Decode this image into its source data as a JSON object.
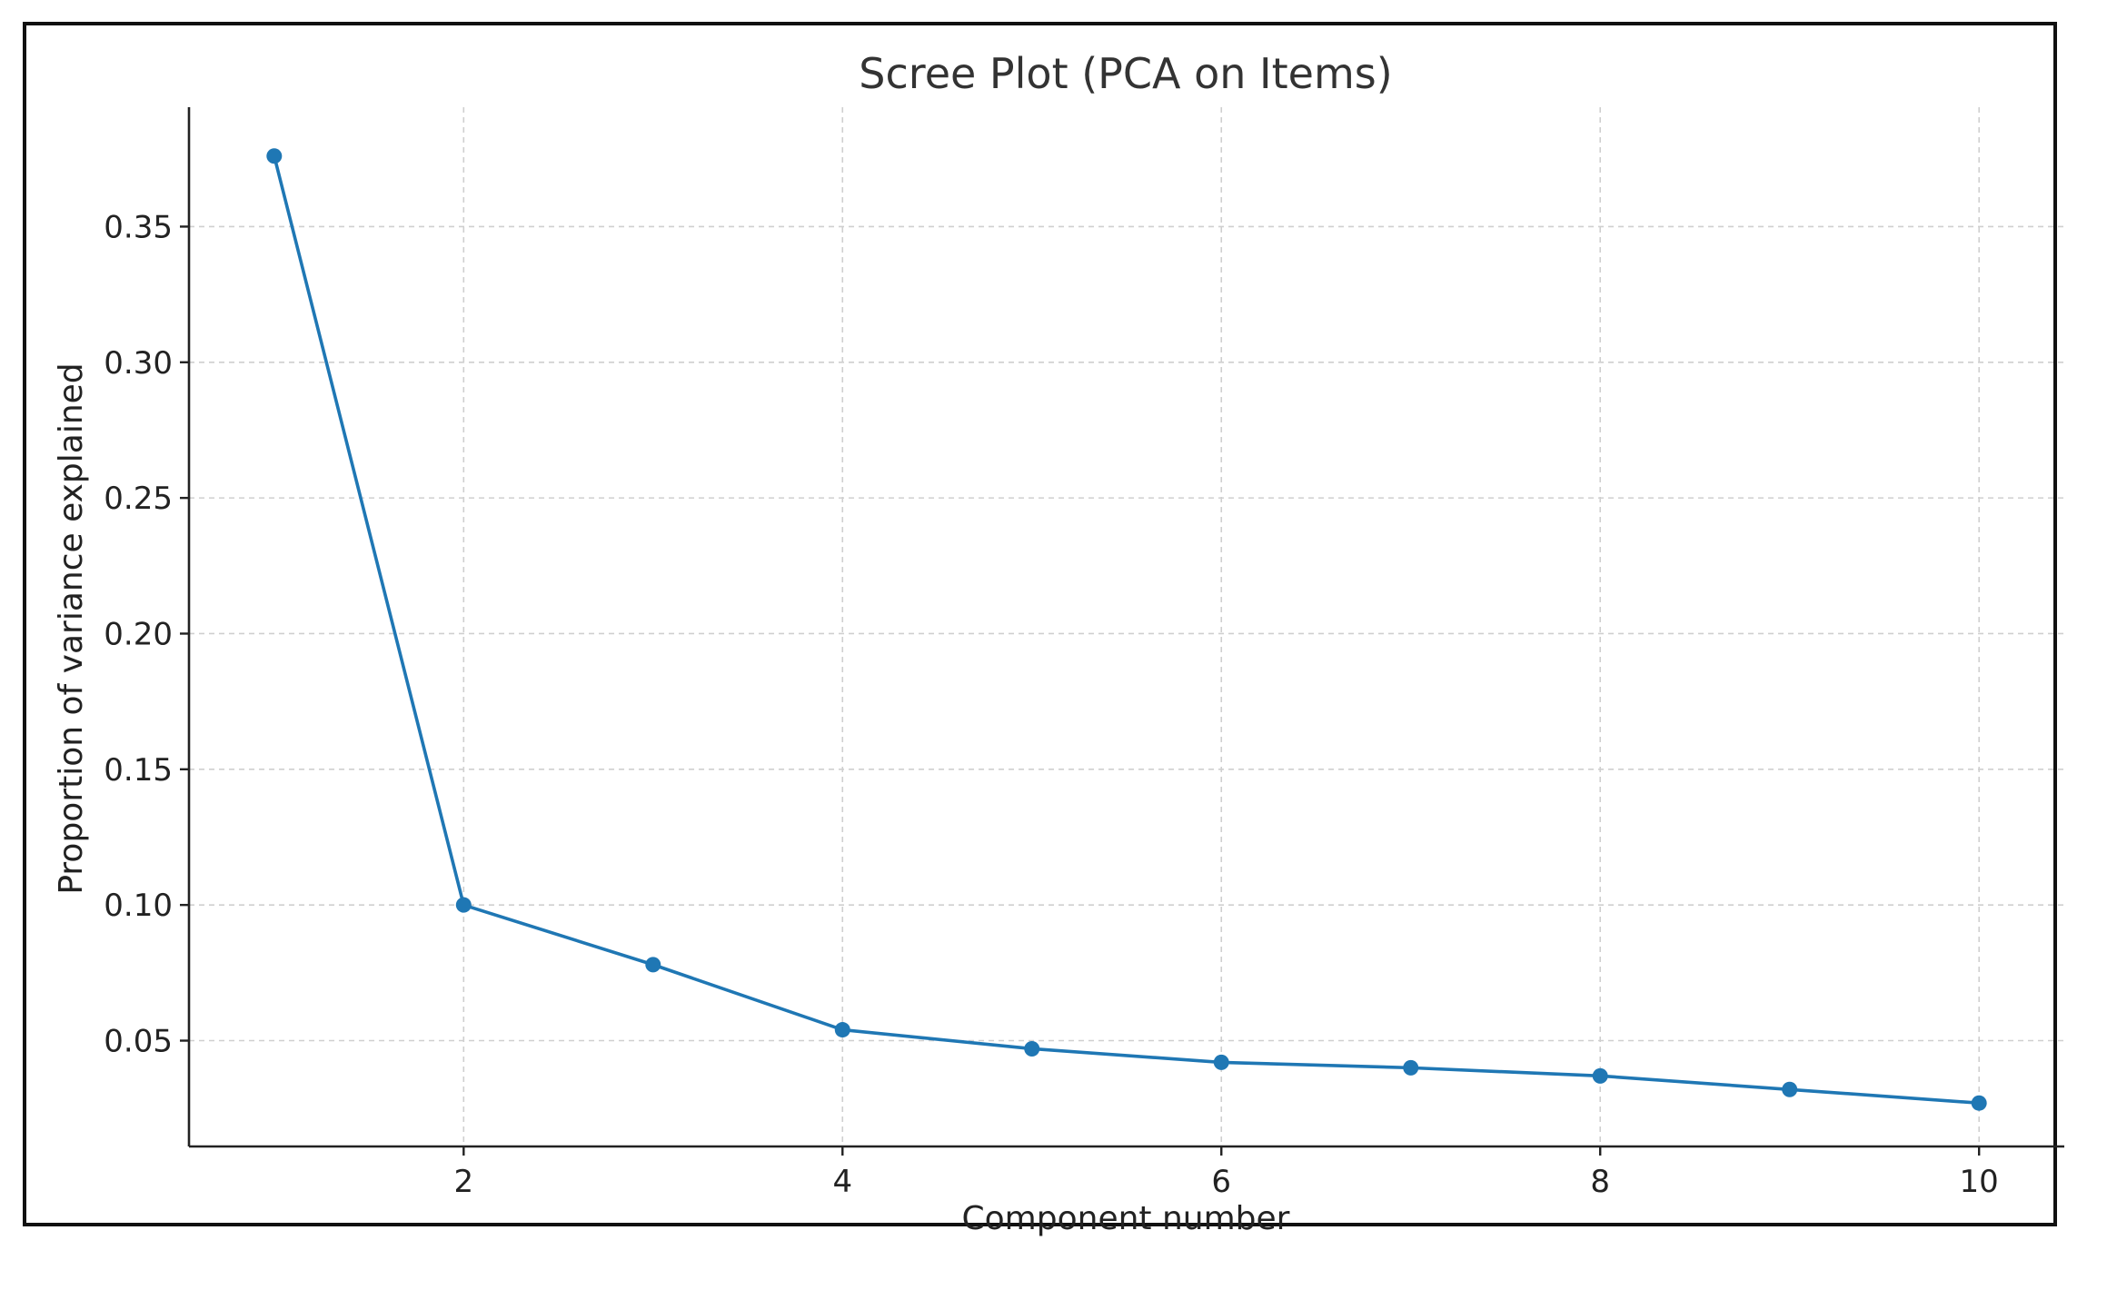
{
  "chart_data": {
    "type": "line",
    "title": "Scree Plot (PCA on Items)",
    "xlabel": "Component number",
    "ylabel": "Proportion of variance explained",
    "x": [
      1,
      2,
      3,
      4,
      5,
      6,
      7,
      8,
      9,
      10
    ],
    "series": [
      {
        "values": [
          0.376,
          0.1,
          0.078,
          0.054,
          0.047,
          0.042,
          0.04,
          0.037,
          0.032,
          0.027
        ]
      }
    ],
    "xlim": [
      0.55,
      10.45
    ],
    "ylim": [
      0.011,
      0.394
    ],
    "xticks": [
      2,
      4,
      6,
      8,
      10
    ],
    "xtick_labels": [
      "2",
      "4",
      "6",
      "8",
      "10"
    ],
    "yticks": [
      0.05,
      0.1,
      0.15,
      0.2,
      0.25,
      0.3,
      0.35
    ],
    "ytick_labels": [
      "0.05",
      "0.10",
      "0.15",
      "0.20",
      "0.25",
      "0.30",
      "0.35"
    ],
    "grid": true,
    "marker": "circle",
    "colors": {
      "series": "#1f77b4",
      "grid": "#cfcfcf",
      "axis": "#222222",
      "frame": "#111111"
    }
  }
}
